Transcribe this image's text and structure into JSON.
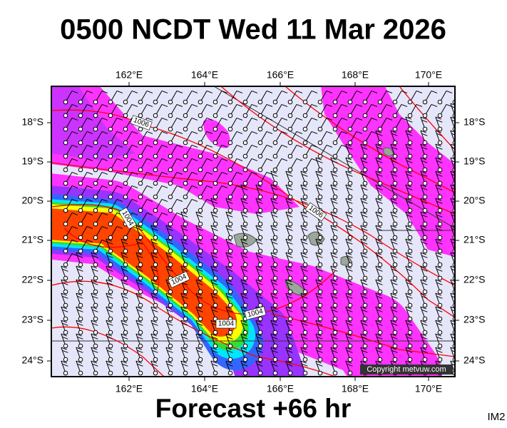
{
  "header": {
    "title": "0500 NCDT Wed 11 Mar 2026"
  },
  "map": {
    "lon_labels": [
      "162°E",
      "164°E",
      "166°E",
      "168°E",
      "170°E"
    ],
    "lat_labels": [
      "18°S",
      "19°S",
      "20°S",
      "21°S",
      "22°S",
      "23°S",
      "24°S"
    ],
    "isobar_labels": [
      "1006",
      "1006",
      "1004",
      "1004",
      "1004",
      "1004"
    ],
    "copyright": "Copyright metvuw.com"
  },
  "footer": {
    "forecast": "Forecast +66 hr",
    "code": "IM2"
  }
}
